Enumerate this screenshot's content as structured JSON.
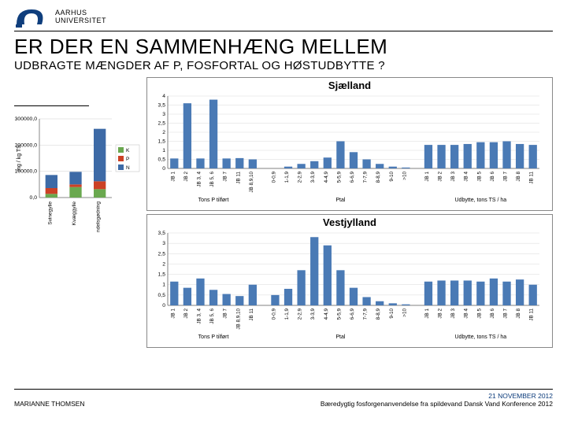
{
  "university": {
    "line1": "AARHUS",
    "line2": "UNIVERSITET"
  },
  "logo_color": "#0f3e7d",
  "title1": "ER DER EN SAMMENHÆNG MELLEM",
  "title2": "UDBRAGTE MÆNGDER AF P, FOSFORTAL OG HØSTUDBYTTE ?",
  "footer": {
    "author": "MARIANNE THOMSEN",
    "date": "21 NOVEMBER 2012",
    "conf": "Bæredygtig fosforgenanvendelse fra spildevand  Dansk Vand Konference 2012"
  },
  "stacked": {
    "ylabel": "mg / kg TS",
    "ymax": 300000,
    "ystep": 100000,
    "categories": [
      "Svinegylle",
      "Kvæggylle",
      "handelsgødning"
    ],
    "series": [
      {
        "name": "K",
        "color": "#6aa84f"
      },
      {
        "name": "P",
        "color": "#cc4125"
      },
      {
        "name": "N",
        "color": "#3d6aa6"
      }
    ],
    "values": {
      "Svinegylle": {
        "N": 50000,
        "P": 22000,
        "K": 14000
      },
      "Kvæggylle": {
        "N": 48000,
        "P": 10000,
        "K": 40000
      },
      "handelsgødning": {
        "N": 200000,
        "P": 30000,
        "K": 32000
      }
    },
    "bg": "#ffffff",
    "grid": "#cfcfcf",
    "bar_color_fallback": "#3d6aa6"
  },
  "barstyle": {
    "color": "#4a7ab5",
    "grid": "#d9d9d9",
    "axis": "#808080"
  },
  "region_sjaelland": {
    "title": "Sjælland",
    "ymax": 4,
    "ystep": 0.5,
    "groups": [
      {
        "label": "Tons P tilført",
        "cats": [
          "JB 1",
          "JB 2",
          "JB 3, 4",
          "JB 5, 6",
          "JB 7",
          "JB 11",
          "JB 8,9,10"
        ],
        "vals": [
          0.55,
          3.6,
          0.55,
          3.8,
          0.55,
          0.57,
          0.5
        ]
      },
      {
        "label": "Ptal",
        "cats": [
          "0-0,9",
          "1-1,9",
          "2-2,9",
          "3-3,9",
          "4-4,9",
          "5-5,9",
          "6-6,9",
          "7-7,9",
          "8-8,9",
          "9-10",
          ">10"
        ],
        "vals": [
          0,
          0.1,
          0.25,
          0.4,
          0.6,
          1.5,
          0.9,
          0.5,
          0.25,
          0.1,
          0.05
        ]
      },
      {
        "label": "Udbytte, tons TS / ha",
        "cats": [
          "JB 1",
          "JB 2",
          "JB 3",
          "JB 4",
          "JB 5",
          "JB 6",
          "JB 7",
          "JB 8",
          "JB 11"
        ],
        "vals": [
          1.3,
          1.3,
          1.3,
          1.35,
          1.45,
          1.45,
          1.5,
          1.35,
          1.3
        ]
      }
    ]
  },
  "region_vestjylland": {
    "title": "Vestjylland",
    "ymax": 3.5,
    "ystep": 0.5,
    "groups": [
      {
        "label": "Tons P tilført",
        "cats": [
          "JB 1",
          "JB 2",
          "JB 3, 4",
          "JB 5, 6",
          "JB 7",
          "JB 8,9,10",
          "JB 11"
        ],
        "vals": [
          1.15,
          0.85,
          1.3,
          0.75,
          0.55,
          0.45,
          1.0
        ]
      },
      {
        "label": "Ptal",
        "cats": [
          "0-0,9",
          "1-1,9",
          "2-2,9",
          "3-3,9",
          "4-4,9",
          "5-5,9",
          "6-6,9",
          "7-7,9",
          "8-8,9",
          "9-10",
          ">10"
        ],
        "vals": [
          0.5,
          0.8,
          1.7,
          3.3,
          2.9,
          1.7,
          0.85,
          0.4,
          0.2,
          0.1,
          0.05
        ]
      },
      {
        "label": "Udbytte, tons TS / ha",
        "cats": [
          "JB 1",
          "JB 2",
          "JB 3",
          "JB 4",
          "JB 5",
          "JB 6",
          "JB 7",
          "JB 8",
          "JB 11"
        ],
        "vals": [
          1.15,
          1.2,
          1.2,
          1.2,
          1.15,
          1.3,
          1.15,
          1.25,
          1.0
        ]
      }
    ]
  }
}
